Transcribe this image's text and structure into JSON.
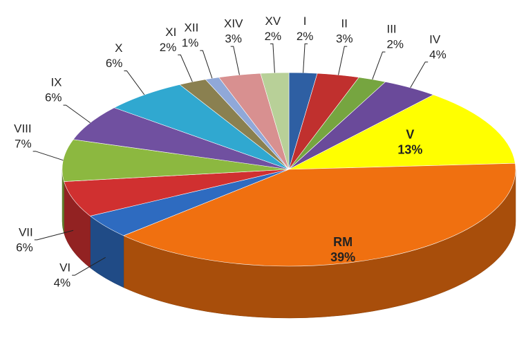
{
  "chart_data": {
    "type": "pie3d",
    "categories": [
      "I",
      "II",
      "III",
      "IV",
      "V",
      "RM",
      "VI",
      "VII",
      "VIII",
      "IX",
      "X",
      "XI",
      "XII",
      "XIV",
      "XV"
    ],
    "values": [
      2,
      3,
      2,
      4,
      13,
      39,
      4,
      6,
      7,
      6,
      6,
      2,
      1,
      3,
      2
    ],
    "value_labels": [
      "2%",
      "3%",
      "2%",
      "4%",
      "13%",
      "39%",
      "4%",
      "6%",
      "7%",
      "6%",
      "6%",
      "2%",
      "1%",
      "3%",
      "2%"
    ],
    "colors": [
      "#2e5fa3",
      "#c0302e",
      "#76a540",
      "#6a4a9a",
      "#ffff00",
      "#f07010",
      "#2e6bc0",
      "#d03030",
      "#8cb840",
      "#7050a0",
      "#30a8d0",
      "#8a8050",
      "#90a8d8",
      "#d89090",
      "#b8d098"
    ]
  }
}
